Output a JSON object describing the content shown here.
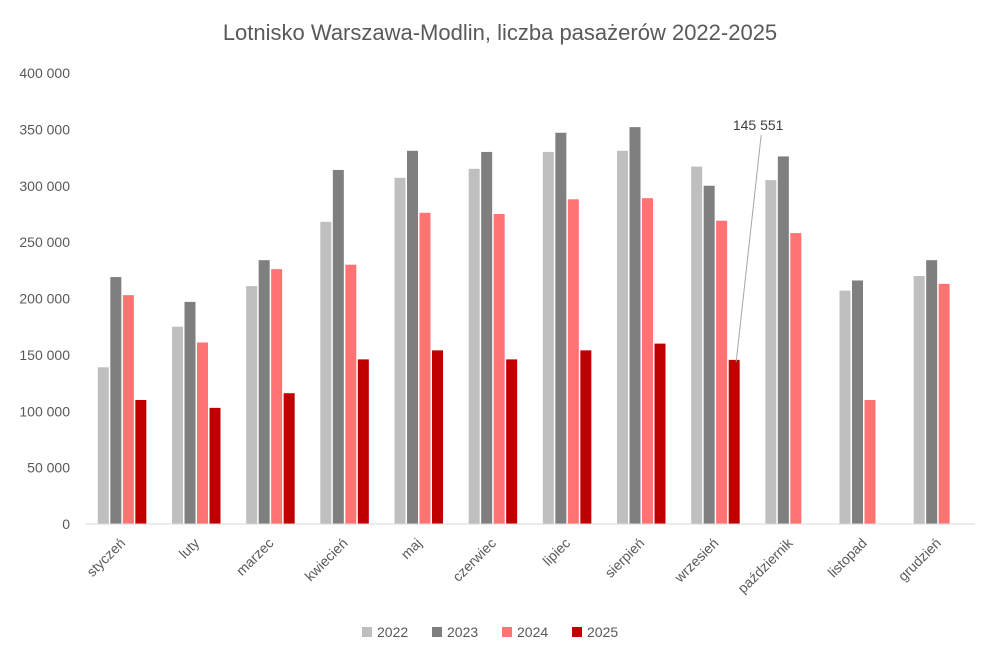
{
  "chart_data": {
    "type": "bar",
    "title": "Lotnisko Warszawa-Modlin, liczba pasażerów 2022-2025",
    "xlabel": "",
    "ylabel": "",
    "ylim": [
      0,
      400000
    ],
    "yticks": [
      0,
      50000,
      100000,
      150000,
      200000,
      250000,
      300000,
      350000,
      400000
    ],
    "ytick_labels": [
      "0",
      "50 000",
      "100 000",
      "150 000",
      "200 000",
      "250 000",
      "300 000",
      "350 000",
      "400 000"
    ],
    "grid": false,
    "legend_position": "bottom",
    "categories": [
      "styczeń",
      "luty",
      "marzec",
      "kwiecień",
      "maj",
      "czerwiec",
      "lipiec",
      "sierpień",
      "wrzesień",
      "październik",
      "listopad",
      "grudzień"
    ],
    "series": [
      {
        "name": "2022",
        "color": "#BFBFBF",
        "values": [
          139000,
          175000,
          211000,
          268000,
          307000,
          315000,
          330000,
          331000,
          317000,
          305000,
          207000,
          220000
        ]
      },
      {
        "name": "2023",
        "color": "#7F7F7F",
        "values": [
          219000,
          197000,
          234000,
          314000,
          331000,
          330000,
          347000,
          352000,
          300000,
          326000,
          216000,
          234000
        ]
      },
      {
        "name": "2024",
        "color": "#FF7373",
        "values": [
          203000,
          161000,
          226000,
          230000,
          276000,
          275000,
          288000,
          289000,
          269000,
          258000,
          110000,
          213000
        ]
      },
      {
        "name": "2025",
        "color": "#C00000",
        "values": [
          110000,
          103000,
          116000,
          146000,
          154000,
          146000,
          154000,
          160000,
          145551,
          null,
          null,
          null
        ]
      }
    ],
    "annotations": [
      {
        "text": "145 551",
        "series": "2025",
        "category": "wrzesień",
        "value": 145551
      }
    ]
  }
}
